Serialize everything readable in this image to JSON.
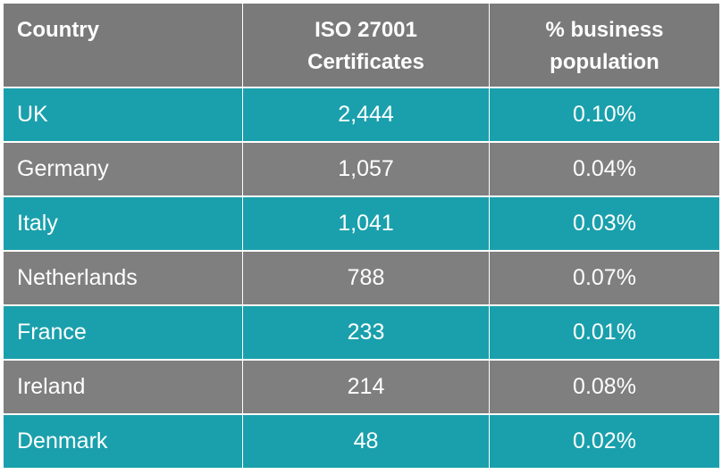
{
  "table": {
    "header": [
      "Country",
      "ISO 27001 Certificates",
      "% business population"
    ],
    "rows": [
      [
        "UK",
        "2,444",
        "0.10%"
      ],
      [
        "Germany",
        "1,057",
        "0.04%"
      ],
      [
        "Italy",
        "1,041",
        "0.03%"
      ],
      [
        "Netherlands",
        "788",
        "0.07%"
      ],
      [
        "France",
        "233",
        "0.01%"
      ],
      [
        "Ireland",
        "214",
        "0.08%"
      ],
      [
        "Denmark",
        "48",
        "0.02%"
      ]
    ]
  }
}
